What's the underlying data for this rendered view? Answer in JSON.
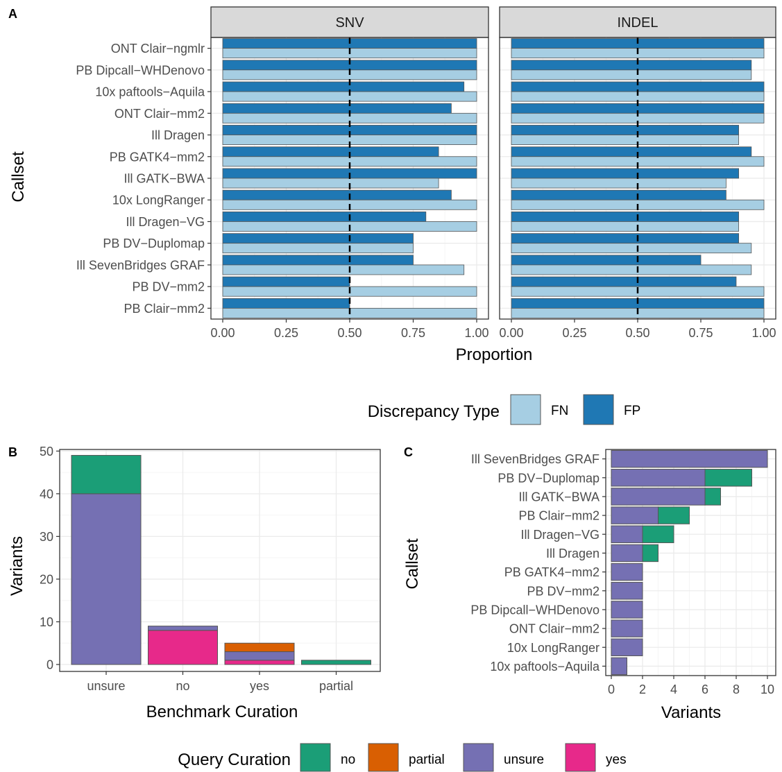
{
  "colors": {
    "FN": "#a6cee3",
    "FP": "#1f78b4",
    "no": "#1b9e77",
    "partial": "#d95f02",
    "unsure": "#7570b3",
    "yes": "#e7298a"
  },
  "chart_data": [
    {
      "panel": "A",
      "type": "bar",
      "orientation": "horizontal",
      "facets": [
        "SNV",
        "INDEL"
      ],
      "categories": [
        "ONT Clair−ngmlr",
        "PB Dipcall−WHDenovo",
        "10x paftools−Aquila",
        "ONT Clair−mm2",
        "Ill Dragen",
        "PB GATK4−mm2",
        "Ill GATK−BWA",
        "10x LongRanger",
        "Ill Dragen−VG",
        "PB DV−Duplomap",
        "Ill SevenBridges GRAF",
        "PB DV−mm2",
        "PB Clair−mm2"
      ],
      "series": [
        {
          "name": "FN",
          "facet": "SNV",
          "values": [
            1,
            1,
            1,
            1,
            1,
            1,
            0.85,
            1,
            1,
            0.75,
            0.95,
            1,
            1
          ]
        },
        {
          "name": "FP",
          "facet": "SNV",
          "values": [
            1,
            1,
            0.95,
            0.9,
            1,
            0.85,
            1,
            0.9,
            0.8,
            0.75,
            0.75,
            0.5,
            0.5
          ]
        },
        {
          "name": "FN",
          "facet": "INDEL",
          "values": [
            1,
            0.95,
            1,
            1,
            0.9,
            1,
            0.85,
            1,
            0.9,
            0.95,
            0.95,
            1,
            1
          ]
        },
        {
          "name": "FP",
          "facet": "INDEL",
          "values": [
            1,
            0.95,
            1,
            1,
            0.9,
            0.95,
            0.9,
            0.85,
            0.9,
            0.9,
            0.75,
            0.89,
            1
          ]
        }
      ],
      "reference_line": 0.5,
      "xlim": [
        0,
        1
      ],
      "xticks": [
        "0.00",
        "0.25",
        "0.50",
        "0.75",
        "1.00"
      ],
      "xlabel": "Proportion",
      "ylabel": "Callset",
      "legend": {
        "title": "Discrepancy Type",
        "entries": [
          "FN",
          "FP"
        ],
        "placement": "bottom"
      }
    },
    {
      "panel": "B",
      "type": "bar",
      "stacked": true,
      "categories": [
        "unsure",
        "no",
        "yes",
        "partial"
      ],
      "series": [
        {
          "name": "unsure",
          "values": [
            40,
            1,
            2,
            0
          ]
        },
        {
          "name": "no",
          "values": [
            9,
            0,
            0,
            1
          ]
        },
        {
          "name": "yes",
          "values": [
            0,
            8,
            1,
            0
          ]
        },
        {
          "name": "partial",
          "values": [
            0,
            0,
            2,
            0
          ]
        }
      ],
      "ylim": [
        0,
        52
      ],
      "yticks": [
        "0",
        "10",
        "20",
        "30",
        "40",
        "50"
      ],
      "xlabel": "Benchmark Curation",
      "ylabel": "Variants"
    },
    {
      "panel": "C",
      "type": "bar",
      "orientation": "horizontal",
      "stacked": true,
      "categories": [
        "Ill SevenBridges GRAF",
        "PB DV−Duplomap",
        "Ill GATK−BWA",
        "PB Clair−mm2",
        "Ill Dragen−VG",
        "Ill Dragen",
        "PB GATK4−mm2",
        "PB DV−mm2",
        "PB Dipcall−WHDenovo",
        "ONT Clair−mm2",
        "10x LongRanger",
        "10x paftools−Aquila"
      ],
      "series": [
        {
          "name": "unsure",
          "values": [
            10,
            6,
            6,
            3,
            2,
            2,
            2,
            2,
            2,
            2,
            2,
            1
          ]
        },
        {
          "name": "no",
          "values": [
            0,
            3,
            1,
            2,
            2,
            1,
            0,
            0,
            0,
            0,
            0,
            0
          ]
        }
      ],
      "xlim": [
        0,
        10.5
      ],
      "xticks": [
        "0",
        "2",
        "4",
        "6",
        "8",
        "10"
      ],
      "xlabel": "Variants",
      "ylabel": "Callset"
    }
  ],
  "legend_query": {
    "title": "Query Curation",
    "entries": [
      "no",
      "partial",
      "unsure",
      "yes"
    ]
  },
  "panel_labels": [
    "A",
    "B",
    "C"
  ]
}
